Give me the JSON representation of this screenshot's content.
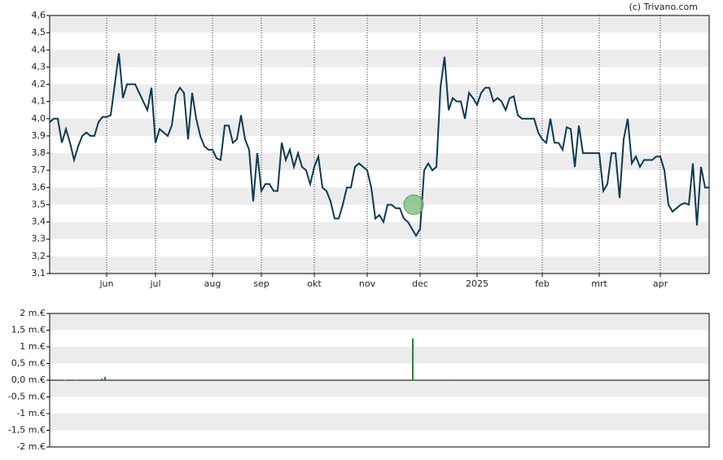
{
  "chart_data": [
    {
      "type": "line",
      "credit": "(c) Trivano.com",
      "color": "#0b3a53",
      "xlim": [
        0,
        162
      ],
      "xticks": [
        {
          "value": 14,
          "label": "jun"
        },
        {
          "value": 26,
          "label": "jul"
        },
        {
          "value": 40,
          "label": "aug"
        },
        {
          "value": 52,
          "label": "sep"
        },
        {
          "value": 65,
          "label": "okt"
        },
        {
          "value": 78,
          "label": "nov"
        },
        {
          "value": 91,
          "label": "dec"
        },
        {
          "value": 105,
          "label": "2025"
        },
        {
          "value": 121,
          "label": "feb"
        },
        {
          "value": 135,
          "label": "mrt"
        },
        {
          "value": 150,
          "label": "apr"
        }
      ],
      "ylim": [
        3.1,
        4.6
      ],
      "yticks": [
        {
          "value": 4.6,
          "label": "4,6"
        },
        {
          "value": 4.5,
          "label": "4,5"
        },
        {
          "value": 4.4,
          "label": "4,4"
        },
        {
          "value": 4.3,
          "label": "4,3"
        },
        {
          "value": 4.2,
          "label": "4,2"
        },
        {
          "value": 4.1,
          "label": "4,1"
        },
        {
          "value": 4.0,
          "label": "4,0"
        },
        {
          "value": 3.9,
          "label": "3,9"
        },
        {
          "value": 3.8,
          "label": "3,8"
        },
        {
          "value": 3.7,
          "label": "3,7"
        },
        {
          "value": 3.6,
          "label": "3,6"
        },
        {
          "value": 3.5,
          "label": "3,5"
        },
        {
          "value": 3.4,
          "label": "3,4"
        },
        {
          "value": 3.3,
          "label": "3,3"
        },
        {
          "value": 3.2,
          "label": "3,2"
        },
        {
          "value": 3.1,
          "label": "3,1"
        }
      ],
      "values": [
        3.98,
        4.0,
        4.0,
        3.86,
        3.94,
        3.86,
        3.76,
        3.84,
        3.9,
        3.92,
        3.9,
        3.9,
        3.98,
        4.01,
        4.01,
        4.02,
        4.2,
        4.38,
        4.12,
        4.2,
        4.2,
        4.2,
        4.15,
        4.1,
        4.05,
        4.18,
        3.86,
        3.94,
        3.92,
        3.9,
        3.96,
        4.14,
        4.18,
        4.15,
        3.88,
        4.15,
        4.0,
        3.9,
        3.84,
        3.82,
        3.82,
        3.77,
        3.76,
        3.96,
        3.96,
        3.86,
        3.88,
        4.02,
        3.88,
        3.82,
        3.52,
        3.8,
        3.58,
        3.62,
        3.62,
        3.58,
        3.58,
        3.86,
        3.76,
        3.82,
        3.72,
        3.8,
        3.72,
        3.7,
        3.62,
        3.72,
        3.78,
        3.6,
        3.58,
        3.52,
        3.42,
        3.42,
        3.5,
        3.6,
        3.6,
        3.72,
        3.74,
        3.72,
        3.7,
        3.6,
        3.42,
        3.44,
        3.4,
        3.5,
        3.5,
        3.48,
        3.48,
        3.42,
        3.4,
        3.36,
        3.32,
        3.36,
        3.7,
        3.74,
        3.7,
        3.72,
        4.18,
        4.36,
        4.05,
        4.12,
        4.1,
        4.1,
        4.0,
        4.15,
        4.12,
        4.08,
        4.15,
        4.18,
        4.18,
        4.1,
        4.12,
        4.1,
        4.05,
        4.12,
        4.13,
        4.02,
        4.0,
        4.0,
        4.0,
        4.0,
        3.92,
        3.88,
        3.86,
        4.0,
        3.86,
        3.86,
        3.82,
        3.95,
        3.94,
        3.72,
        3.96,
        3.8,
        3.8,
        3.8,
        3.8,
        3.8,
        3.58,
        3.62,
        3.8,
        3.8,
        3.54,
        3.88,
        4.0,
        3.74,
        3.78,
        3.72,
        3.76,
        3.76,
        3.76,
        3.78,
        3.78,
        3.7,
        3.5,
        3.46,
        3.48,
        3.5,
        3.51,
        3.5,
        3.74,
        3.38,
        3.72,
        3.6,
        3.6
      ],
      "marker": {
        "x": 89.4,
        "y": 3.5,
        "color": "#7fbf7f"
      }
    },
    {
      "type": "bar",
      "color": "#1a8a3a",
      "xlim": [
        0,
        162
      ],
      "x": [
        2.8,
        3.8,
        6.4,
        12.8,
        13.6,
        89.2,
        98.4
      ],
      "values": [
        0.02,
        0.01,
        0.01,
        0.05,
        0.1,
        1.25,
        0.02
      ],
      "ylim": [
        -2,
        2
      ],
      "yticks": [
        {
          "value": 2,
          "label": "2 m.€"
        },
        {
          "value": 1.5,
          "label": "1,5 m.€"
        },
        {
          "value": 1,
          "label": "1 m.€"
        },
        {
          "value": 0.5,
          "label": "0,5 m.€"
        },
        {
          "value": 0,
          "label": "0,0 m.€"
        },
        {
          "value": -0.5,
          "label": "-0,5 m.€"
        },
        {
          "value": -1,
          "label": "-1 m.€"
        },
        {
          "value": -1.5,
          "label": "-1,5 m.€"
        },
        {
          "value": -2,
          "label": "-2 m.€"
        }
      ]
    }
  ]
}
